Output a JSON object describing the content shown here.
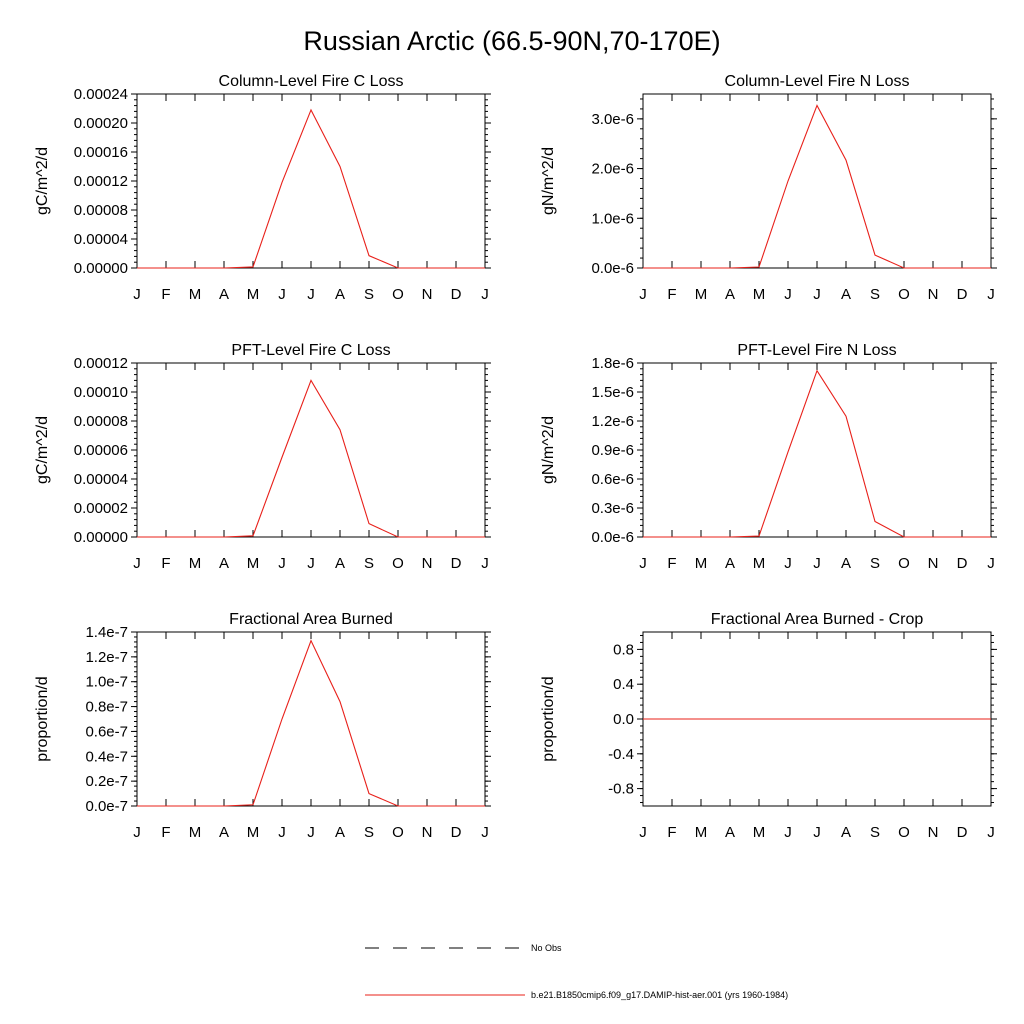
{
  "figure": {
    "title": "Russian Arctic (66.5-90N,70-170E)"
  },
  "chart_data": [
    {
      "type": "line",
      "title": "Column-Level Fire C Loss",
      "ylabel": "gC/m^2/d",
      "categories": [
        "J",
        "F",
        "M",
        "A",
        "M",
        "J",
        "J",
        "A",
        "S",
        "O",
        "N",
        "D",
        "J"
      ],
      "ylim": [
        0,
        0.00024
      ],
      "yticks": [
        0,
        4e-05,
        8e-05,
        0.00012,
        0.00016,
        0.0002,
        0.00024
      ],
      "ytick_labels": [
        "0.00000",
        "0.00004",
        "0.00008",
        "0.00012",
        "0.00016",
        "0.00020",
        "0.00024"
      ],
      "series": [
        {
          "color": "#e8201a",
          "values": [
            0,
            0,
            0,
            0,
            1.5e-06,
            0.000118,
            0.000218,
            0.00014,
            1.7e-05,
            0,
            0,
            0,
            0
          ]
        }
      ]
    },
    {
      "type": "line",
      "title": "Column-Level Fire N Loss",
      "ylabel": "gN/m^2/d",
      "categories": [
        "J",
        "F",
        "M",
        "A",
        "M",
        "J",
        "J",
        "A",
        "S",
        "O",
        "N",
        "D",
        "J"
      ],
      "ylim": [
        0,
        3.5e-06
      ],
      "yticks": [
        0,
        1e-06,
        2e-06,
        3e-06
      ],
      "ytick_labels": [
        "0.0e-6",
        "1.0e-6",
        "2.0e-6",
        "3.0e-6"
      ],
      "series": [
        {
          "color": "#e8201a",
          "values": [
            0,
            0,
            0,
            0,
            2e-08,
            1.75e-06,
            3.27e-06,
            2.17e-06,
            2.6e-07,
            0,
            0,
            0,
            0
          ]
        }
      ]
    },
    {
      "type": "line",
      "title": "PFT-Level Fire C Loss",
      "ylabel": "gC/m^2/d",
      "categories": [
        "J",
        "F",
        "M",
        "A",
        "M",
        "J",
        "J",
        "A",
        "S",
        "O",
        "N",
        "D",
        "J"
      ],
      "ylim": [
        0,
        0.00012
      ],
      "yticks": [
        0,
        2e-05,
        4e-05,
        6e-05,
        8e-05,
        0.0001,
        0.00012
      ],
      "ytick_labels": [
        "0.00000",
        "0.00002",
        "0.00004",
        "0.00006",
        "0.00008",
        "0.00010",
        "0.00012"
      ],
      "series": [
        {
          "color": "#e8201a",
          "values": [
            0,
            0,
            0,
            0,
            8e-07,
            5.5e-05,
            0.000108,
            7.4e-05,
            9.2e-06,
            0,
            0,
            0,
            0
          ]
        }
      ]
    },
    {
      "type": "line",
      "title": "PFT-Level Fire N Loss",
      "ylabel": "gN/m^2/d",
      "categories": [
        "J",
        "F",
        "M",
        "A",
        "M",
        "J",
        "J",
        "A",
        "S",
        "O",
        "N",
        "D",
        "J"
      ],
      "ylim": [
        0,
        1.8e-06
      ],
      "yticks": [
        0,
        3e-07,
        6e-07,
        9e-07,
        1.2e-06,
        1.5e-06,
        1.8e-06
      ],
      "ytick_labels": [
        "0.0e-6",
        "0.3e-6",
        "0.6e-6",
        "0.9e-6",
        "1.2e-6",
        "1.5e-6",
        "1.8e-6"
      ],
      "series": [
        {
          "color": "#e8201a",
          "values": [
            0,
            0,
            0,
            0,
            1e-08,
            8.8e-07,
            1.72e-06,
            1.25e-06,
            1.6e-07,
            0,
            0,
            0,
            0
          ]
        }
      ]
    },
    {
      "type": "line",
      "title": "Fractional Area Burned",
      "ylabel": "proportion/d",
      "categories": [
        "J",
        "F",
        "M",
        "A",
        "M",
        "J",
        "J",
        "A",
        "S",
        "O",
        "N",
        "D",
        "J"
      ],
      "ylim": [
        0,
        1.4e-07
      ],
      "yticks": [
        0,
        2e-08,
        4e-08,
        6e-08,
        8e-08,
        1e-07,
        1.2e-07,
        1.4e-07
      ],
      "ytick_labels": [
        "0.0e-7",
        "0.2e-7",
        "0.4e-7",
        "0.6e-7",
        "0.8e-7",
        "1.0e-7",
        "1.2e-7",
        "1.4e-7"
      ],
      "series": [
        {
          "color": "#e8201a",
          "values": [
            0,
            0,
            0,
            0,
            1e-09,
            7e-08,
            1.33e-07,
            8.4e-08,
            1e-08,
            0,
            0,
            0,
            0
          ]
        }
      ]
    },
    {
      "type": "line",
      "title": "Fractional Area Burned - Crop",
      "ylabel": "proportion/d",
      "categories": [
        "J",
        "F",
        "M",
        "A",
        "M",
        "J",
        "J",
        "A",
        "S",
        "O",
        "N",
        "D",
        "J"
      ],
      "ylim": [
        -1,
        1
      ],
      "yticks": [
        -0.8,
        -0.4,
        0,
        0.4,
        0.8
      ],
      "ytick_labels": [
        "-0.8",
        "-0.4",
        "0.0",
        "0.4",
        "0.8"
      ],
      "series": [
        {
          "color": "#e8201a",
          "values": [
            0,
            0,
            0,
            0,
            0,
            0,
            0,
            0,
            0,
            0,
            0,
            0,
            0
          ]
        }
      ]
    }
  ],
  "legend": {
    "items": [
      {
        "label": "No Obs",
        "style": "dashed",
        "color": "#000000"
      },
      {
        "label": "b.e21.B1850cmip6.f09_g17.DAMIP-hist-aer.001 (yrs 1960-1984)",
        "style": "solid",
        "color": "#e8201a"
      }
    ]
  }
}
